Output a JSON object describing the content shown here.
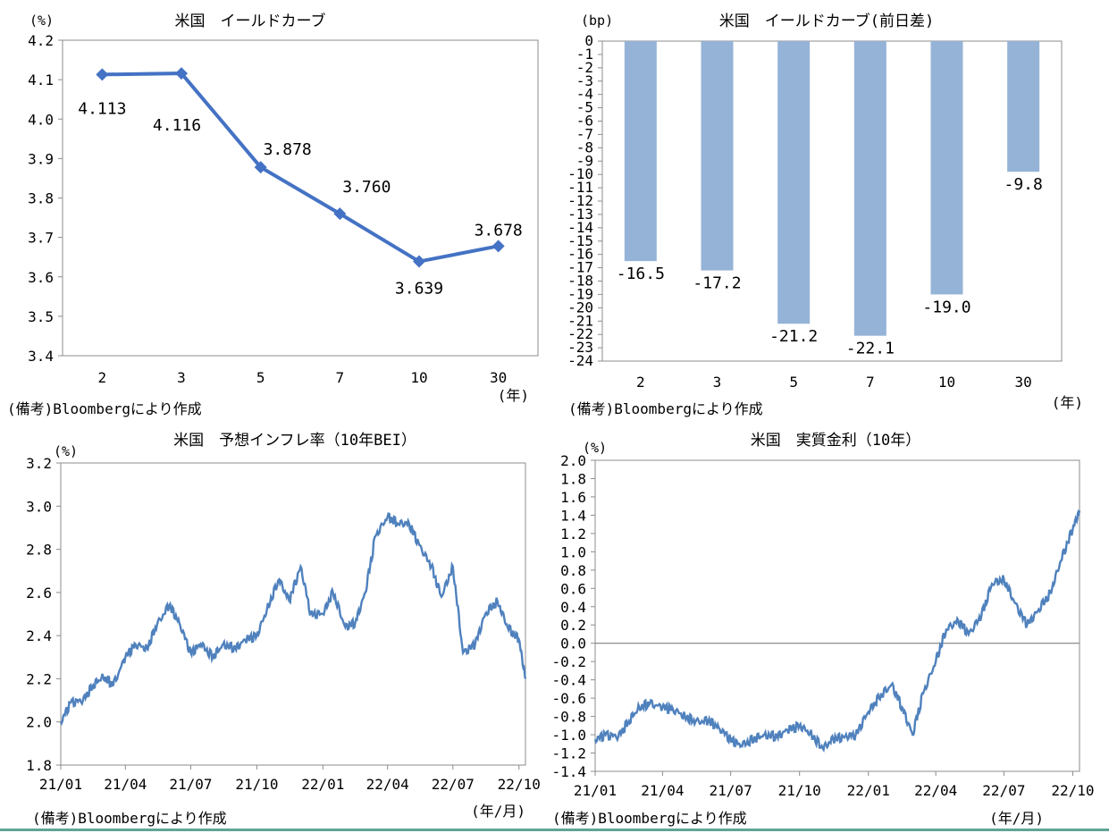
{
  "chart_data": [
    {
      "type": "line",
      "title": "米国　イールドカーブ",
      "unit_label": "(%)",
      "x_unit_label": "(年)",
      "note": "(備考)Bloombergにより作成",
      "categories": [
        "2",
        "3",
        "5",
        "7",
        "10",
        "30"
      ],
      "values": [
        4.113,
        4.116,
        3.878,
        3.76,
        3.639,
        3.678
      ],
      "data_labels": [
        "4.113",
        "4.116",
        "3.878",
        "3.760",
        "3.639",
        "3.678"
      ],
      "ylim": [
        3.4,
        4.2
      ],
      "yticks": [
        "3.4",
        "3.5",
        "3.6",
        "3.7",
        "3.8",
        "3.9",
        "4.0",
        "4.1",
        "4.2"
      ],
      "color": "#4472c4",
      "marker": "diamond"
    },
    {
      "type": "bar",
      "title": "米国　イールドカーブ(前日差)",
      "unit_label": "(bp)",
      "x_unit_label": "(年)",
      "note": "(備考)Bloombergにより作成",
      "categories": [
        "2",
        "3",
        "5",
        "7",
        "10",
        "30"
      ],
      "values": [
        -16.5,
        -17.2,
        -21.2,
        -22.1,
        -19.0,
        -9.8
      ],
      "data_labels": [
        "-16.5",
        "-17.2",
        "-21.2",
        "-22.1",
        "-19.0",
        "-9.8"
      ],
      "ylim": [
        -24,
        0
      ],
      "yticks": [
        "0",
        "-1",
        "-2",
        "-3",
        "-4",
        "-5",
        "-6",
        "-7",
        "-8",
        "-9",
        "-10",
        "-11",
        "-12",
        "-13",
        "-14",
        "-15",
        "-16",
        "-17",
        "-18",
        "-19",
        "-20",
        "-21",
        "-22",
        "-23",
        "-24"
      ],
      "color": "#95b3d7"
    },
    {
      "type": "line",
      "title": "米国　予想インフレ率（10年BEI）",
      "unit_label": "(%)",
      "x_unit_label": "(年/月)",
      "note": "(備考)Bloombergにより作成",
      "x_ticks": [
        "21/01",
        "21/04",
        "21/07",
        "21/10",
        "22/01",
        "22/04",
        "22/07",
        "22/10"
      ],
      "ylim": [
        1.8,
        3.2
      ],
      "yticks": [
        "1.8",
        "2.0",
        "2.2",
        "2.4",
        "2.6",
        "2.8",
        "3.0",
        "3.2"
      ],
      "color": "#4f81bd",
      "series": [
        {
          "x": [
            "2021-01-01",
            "2021-01-15",
            "2021-02-01",
            "2021-02-15",
            "2021-03-01",
            "2021-03-15",
            "2021-04-01",
            "2021-04-15",
            "2021-05-01",
            "2021-05-15",
            "2021-06-01",
            "2021-06-15",
            "2021-07-01",
            "2021-07-15",
            "2021-08-01",
            "2021-08-15",
            "2021-09-01",
            "2021-09-15",
            "2021-10-01",
            "2021-10-15",
            "2021-11-01",
            "2021-11-15",
            "2021-12-01",
            "2021-12-15",
            "2022-01-01",
            "2022-01-15",
            "2022-02-01",
            "2022-02-15",
            "2022-03-01",
            "2022-03-15",
            "2022-04-01",
            "2022-04-15",
            "2022-05-01",
            "2022-05-15",
            "2022-06-01",
            "2022-06-15",
            "2022-07-01",
            "2022-07-15",
            "2022-08-01",
            "2022-08-15",
            "2022-09-01",
            "2022-09-15",
            "2022-10-01",
            "2022-10-10"
          ],
          "values": [
            2.0,
            2.09,
            2.1,
            2.17,
            2.21,
            2.17,
            2.3,
            2.36,
            2.34,
            2.45,
            2.54,
            2.46,
            2.32,
            2.36,
            2.3,
            2.36,
            2.34,
            2.38,
            2.4,
            2.52,
            2.66,
            2.56,
            2.72,
            2.5,
            2.5,
            2.6,
            2.44,
            2.46,
            2.6,
            2.86,
            2.95,
            2.92,
            2.92,
            2.82,
            2.72,
            2.58,
            2.72,
            2.32,
            2.36,
            2.5,
            2.56,
            2.44,
            2.38,
            2.2
          ]
        }
      ]
    },
    {
      "type": "line",
      "title": "米国　実質金利（10年）",
      "unit_label": "(%)",
      "x_unit_label": "(年/月)",
      "note": "(備考)Bloombergにより作成",
      "x_ticks": [
        "21/01",
        "21/04",
        "21/07",
        "21/10",
        "22/01",
        "22/04",
        "22/07",
        "22/10"
      ],
      "ylim": [
        -1.4,
        2.0
      ],
      "yticks": [
        "2.0",
        "1.8",
        "1.6",
        "1.4",
        "1.2",
        "1.0",
        "0.8",
        "0.6",
        "0.4",
        "0.2",
        "0.0",
        "-0.2",
        "-0.4",
        "-0.6",
        "-0.8",
        "-1.0",
        "-1.2",
        "-1.4"
      ],
      "color": "#4f81bd",
      "series": [
        {
          "x": [
            "2021-01-01",
            "2021-01-15",
            "2021-02-01",
            "2021-02-15",
            "2021-03-01",
            "2021-03-15",
            "2021-04-01",
            "2021-04-15",
            "2021-05-01",
            "2021-05-15",
            "2021-06-01",
            "2021-06-15",
            "2021-07-01",
            "2021-07-15",
            "2021-08-01",
            "2021-08-15",
            "2021-09-01",
            "2021-09-15",
            "2021-10-01",
            "2021-10-15",
            "2021-11-01",
            "2021-11-15",
            "2021-12-01",
            "2021-12-15",
            "2022-01-01",
            "2022-01-15",
            "2022-02-01",
            "2022-02-15",
            "2022-03-01",
            "2022-03-15",
            "2022-04-01",
            "2022-04-15",
            "2022-05-01",
            "2022-05-15",
            "2022-06-01",
            "2022-06-15",
            "2022-07-01",
            "2022-07-15",
            "2022-08-01",
            "2022-08-15",
            "2022-09-01",
            "2022-09-15",
            "2022-10-01",
            "2022-10-10"
          ],
          "values": [
            -1.05,
            -1.0,
            -1.02,
            -0.85,
            -0.7,
            -0.66,
            -0.7,
            -0.72,
            -0.8,
            -0.86,
            -0.85,
            -0.92,
            -1.05,
            -1.12,
            -1.05,
            -1.0,
            -1.02,
            -0.95,
            -0.9,
            -0.98,
            -1.15,
            -1.05,
            -1.02,
            -1.0,
            -0.75,
            -0.6,
            -0.45,
            -0.7,
            -1.0,
            -0.55,
            -0.2,
            0.15,
            0.25,
            0.1,
            0.3,
            0.65,
            0.7,
            0.45,
            0.2,
            0.35,
            0.55,
            0.9,
            1.25,
            1.45
          ]
        }
      ]
    }
  ]
}
